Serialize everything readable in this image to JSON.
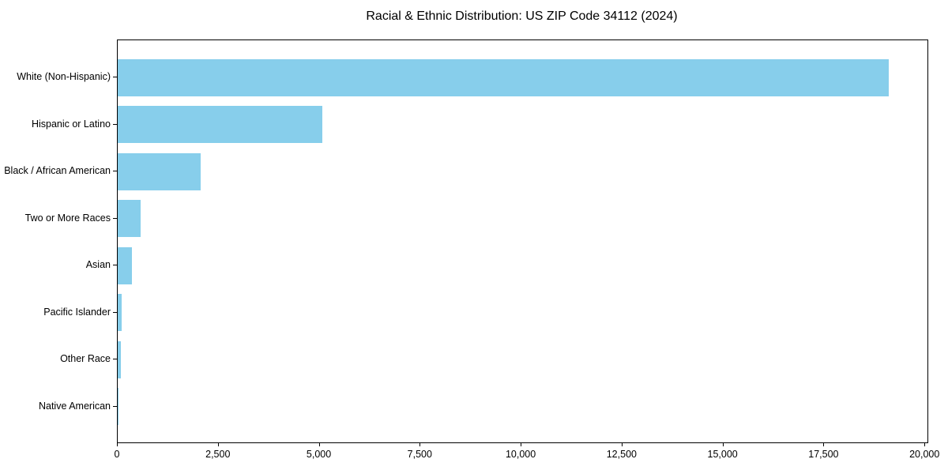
{
  "chart_data": {
    "type": "bar",
    "orientation": "horizontal",
    "title": "Racial & Ethnic Distribution: US ZIP Code 34112 (2024)",
    "categories": [
      "White (Non-Hispanic)",
      "Hispanic or Latino",
      "Black / African American",
      "Two or More Races",
      "Asian",
      "Pacific Islander",
      "Other Race",
      "Native American"
    ],
    "values": [
      19100,
      5070,
      2060,
      570,
      350,
      100,
      80,
      25
    ],
    "xlabel": "",
    "ylabel": "",
    "xlim": [
      0,
      20055
    ],
    "xticks": [
      0,
      2500,
      5000,
      7500,
      10000,
      12500,
      15000,
      17500,
      20000
    ],
    "xtick_labels": [
      "0",
      "2,500",
      "5,000",
      "7,500",
      "10,000",
      "12,500",
      "15,000",
      "17,500",
      "20,000"
    ],
    "bar_color": "#87CEEB",
    "background_color": "#ffffff",
    "grid": false,
    "legend": null
  }
}
